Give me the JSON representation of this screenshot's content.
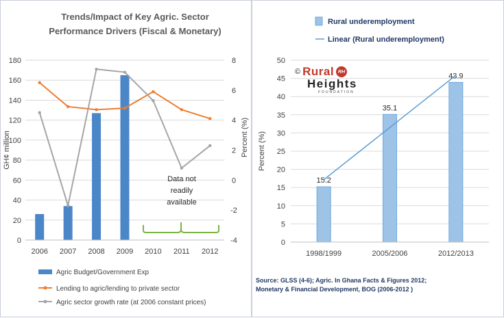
{
  "chart_data": [
    {
      "type": "bar+line",
      "title_lines": [
        "Trends/Impact  of Key Agric. Sector",
        "Performance Drivers (Fiscal & Monetary)"
      ],
      "categories": [
        "2006",
        "2007",
        "2008",
        "2009",
        "2010",
        "2011",
        "2012"
      ],
      "ylabel": "GH¢ million",
      "y2label": "Percent  (%)",
      "ylim": [
        0,
        180
      ],
      "yticks": [
        "0",
        "20",
        "40",
        "60",
        "80",
        "100",
        "120",
        "140",
        "160",
        "180"
      ],
      "y2lim": [
        -4,
        8
      ],
      "y2ticks": [
        "-4",
        "-2",
        "0",
        "2",
        "4",
        "6",
        "8"
      ],
      "grid": true,
      "annotation_lines": [
        "Data not",
        "readily",
        "available"
      ],
      "legend_position": "bottom",
      "series": [
        {
          "name": "Agric Budget/Government Exp",
          "type": "bar",
          "axis": "left",
          "color": "#4a86c8",
          "values": [
            26,
            34,
            127,
            165,
            null,
            null,
            null
          ]
        },
        {
          "name": "Lending to agric/lending to private sector",
          "type": "line",
          "axis": "right",
          "color": "#ed7d31",
          "values": [
            6.5,
            4.9,
            4.7,
            4.8,
            5.9,
            4.7,
            4.1
          ]
        },
        {
          "name": "Agric sector growth rate (at 2006 constant prices)",
          "type": "line",
          "axis": "right",
          "color": "#a5a5a5",
          "values": [
            4.5,
            -1.7,
            7.4,
            7.2,
            5.3,
            0.8,
            2.3
          ]
        }
      ]
    },
    {
      "type": "bar+line",
      "categories": [
        "1998/1999",
        "2005/2006",
        "2012/2013"
      ],
      "ylabel": "Percent  (%)",
      "ylim": [
        0,
        50
      ],
      "yticks": [
        "0",
        "5",
        "10",
        "15",
        "20",
        "25",
        "30",
        "35",
        "40",
        "45",
        "50"
      ],
      "grid": true,
      "legend_position": "top",
      "series": [
        {
          "name": "Rural underemployment",
          "type": "bar",
          "color": "#9dc3e6",
          "values": [
            15.2,
            35.1,
            43.9
          ],
          "data_labels": [
            "15.2",
            "35.1",
            "43.9"
          ]
        },
        {
          "name": "Linear (Rural underemployment)",
          "type": "line",
          "color": "#5b9bd5",
          "values": [
            17.15,
            31.5,
            45.85
          ]
        }
      ]
    }
  ],
  "logo": {
    "copyright": "©",
    "word1": "Rural",
    "badge": "RH",
    "word2": "Heights",
    "sub": "FOUNDATION"
  },
  "source_lines": [
    "Source: GLSS (4-6); Agric. In Ghana Facts & Figures 2012;",
    "  Monetary & Financial Development,  BOG (2006-2012  )"
  ]
}
